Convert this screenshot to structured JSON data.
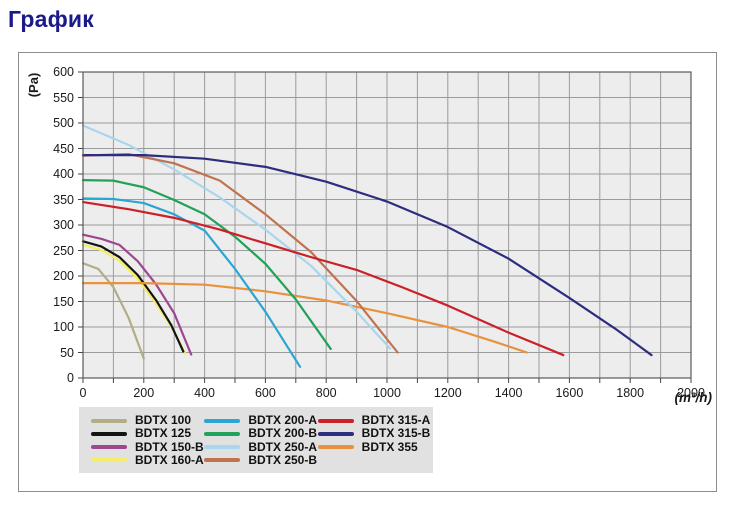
{
  "title": "График",
  "title_color": "#1a1a8c",
  "panel": {
    "border_color": "#8c8c8c"
  },
  "chart_data": {
    "type": "line",
    "title": "",
    "xlabel_unit": "(m³/h)",
    "ylabel_unit": "(Pa)",
    "xlim": [
      0,
      2000
    ],
    "ylim": [
      0,
      600
    ],
    "x_minor_tick_step": 100,
    "x_label_step": 200,
    "y_tick_step": 50,
    "grid": true,
    "plot_bg": "#ededed",
    "grid_color": "#9b9b9b",
    "frame_color": "#5a5a5a",
    "tick_color": "#444444",
    "legend_position": "bottom",
    "legend_bg": "#e1e1e1",
    "series": [
      {
        "name": "BDTX 100",
        "color": "#b2ad84",
        "points": [
          [
            0,
            225
          ],
          [
            50,
            214
          ],
          [
            100,
            178
          ],
          [
            150,
            118
          ],
          [
            200,
            38
          ]
        ]
      },
      {
        "name": "BDTX 125",
        "color": "#141414",
        "points": [
          [
            0,
            268
          ],
          [
            60,
            258
          ],
          [
            120,
            237
          ],
          [
            180,
            202
          ],
          [
            240,
            153
          ],
          [
            290,
            104
          ],
          [
            330,
            52
          ]
        ]
      },
      {
        "name": "BDTX 150-B",
        "color": "#9d4791",
        "points": [
          [
            0,
            281
          ],
          [
            60,
            273
          ],
          [
            120,
            261
          ],
          [
            180,
            229
          ],
          [
            240,
            184
          ],
          [
            300,
            127
          ],
          [
            356,
            46
          ]
        ]
      },
      {
        "name": "BDTX 160-A",
        "color": "#f3ee66",
        "points": [
          [
            0,
            261
          ],
          [
            60,
            251
          ],
          [
            120,
            230
          ],
          [
            180,
            195
          ],
          [
            240,
            146
          ],
          [
            295,
            96
          ],
          [
            336,
            48
          ]
        ]
      },
      {
        "name": "BDTX 200-A",
        "color": "#2ba6d2",
        "points": [
          [
            0,
            352
          ],
          [
            100,
            351
          ],
          [
            200,
            343
          ],
          [
            300,
            321
          ],
          [
            400,
            289
          ],
          [
            500,
            214
          ],
          [
            600,
            130
          ],
          [
            714,
            22
          ]
        ]
      },
      {
        "name": "BDTX 200-B",
        "color": "#21a257",
        "points": [
          [
            0,
            388
          ],
          [
            100,
            387
          ],
          [
            200,
            374
          ],
          [
            300,
            349
          ],
          [
            400,
            321
          ],
          [
            500,
            277
          ],
          [
            600,
            224
          ],
          [
            700,
            154
          ],
          [
            815,
            57
          ]
        ]
      },
      {
        "name": "BDTX 250-A",
        "color": "#a9d6ec",
        "points": [
          [
            0,
            495
          ],
          [
            150,
            457
          ],
          [
            300,
            409
          ],
          [
            450,
            354
          ],
          [
            600,
            291
          ],
          [
            750,
            220
          ],
          [
            900,
            130
          ],
          [
            1010,
            58
          ]
        ]
      },
      {
        "name": "BDTX 250-B",
        "color": "#c0734f",
        "points": [
          [
            0,
            436
          ],
          [
            150,
            439
          ],
          [
            300,
            421
          ],
          [
            450,
            387
          ],
          [
            600,
            321
          ],
          [
            750,
            247
          ],
          [
            900,
            151
          ],
          [
            1035,
            50
          ]
        ]
      },
      {
        "name": "BDTX 315-A",
        "color": "#cc2027",
        "points": [
          [
            0,
            345
          ],
          [
            150,
            331
          ],
          [
            300,
            314
          ],
          [
            450,
            291
          ],
          [
            600,
            264
          ],
          [
            750,
            237
          ],
          [
            900,
            212
          ],
          [
            1050,
            178
          ],
          [
            1200,
            142
          ],
          [
            1400,
            89
          ],
          [
            1580,
            45
          ]
        ]
      },
      {
        "name": "BDTX 315-B",
        "color": "#2c2d7f",
        "points": [
          [
            0,
            437
          ],
          [
            200,
            437
          ],
          [
            400,
            430
          ],
          [
            600,
            414
          ],
          [
            800,
            385
          ],
          [
            1000,
            346
          ],
          [
            1200,
            296
          ],
          [
            1400,
            234
          ],
          [
            1600,
            157
          ],
          [
            1750,
            97
          ],
          [
            1870,
            45
          ]
        ]
      },
      {
        "name": "BDTX 355",
        "color": "#e9923e",
        "points": [
          [
            0,
            186
          ],
          [
            200,
            186
          ],
          [
            400,
            183
          ],
          [
            600,
            170
          ],
          [
            800,
            152
          ],
          [
            1000,
            127
          ],
          [
            1200,
            100
          ],
          [
            1350,
            72
          ],
          [
            1460,
            50
          ]
        ]
      }
    ]
  }
}
